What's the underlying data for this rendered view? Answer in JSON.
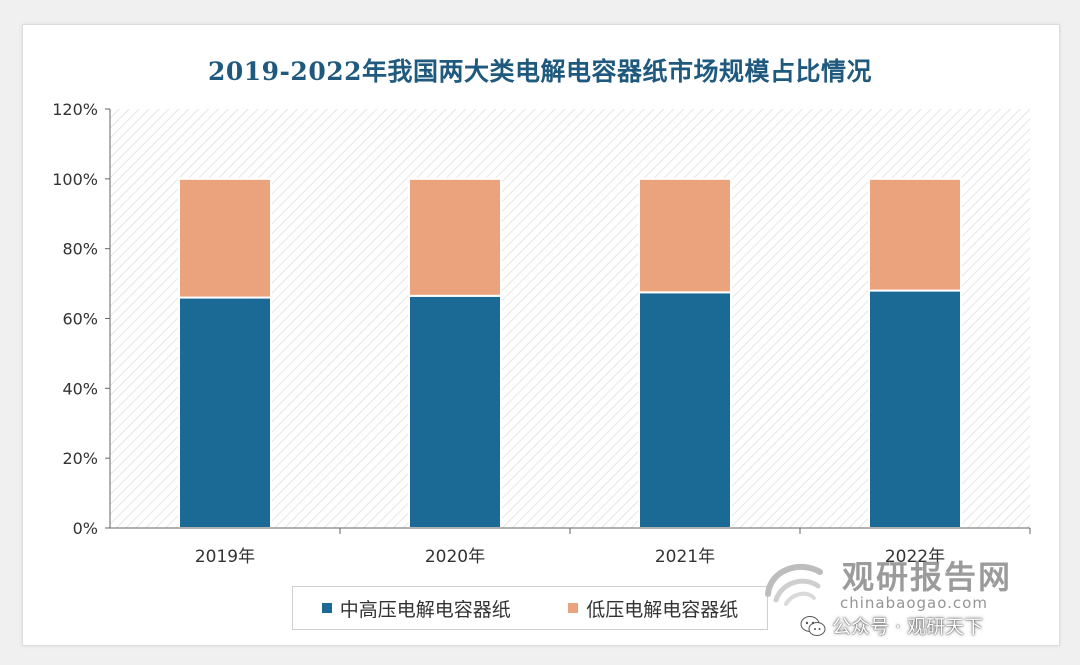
{
  "chart_data": {
    "type": "bar",
    "stacked": true,
    "title": "2019-2022年我国两大类电解电容器纸市场规模占比情况",
    "categories": [
      "2019年",
      "2020年",
      "2021年",
      "2022年"
    ],
    "series": [
      {
        "name": "中高压电解电容器纸",
        "values": [
          66,
          66.5,
          67.5,
          68
        ],
        "color": "#1b6a96"
      },
      {
        "name": "低压电解电容器纸",
        "values": [
          34,
          33.5,
          32.5,
          32
        ],
        "color": "#eaa37c"
      }
    ],
    "y_ticks": [
      "0%",
      "20%",
      "40%",
      "60%",
      "80%",
      "100%",
      "120%"
    ],
    "ylim": [
      0,
      120
    ],
    "legend_position": "bottom",
    "plot_background": "hatched"
  },
  "watermark": {
    "brand": "观研报告网",
    "url": "chinabaogao.com",
    "account": "公众号 · 观研天下",
    "logo_icon": "swirl-logo-icon",
    "account_icon": "wechat-icon"
  }
}
